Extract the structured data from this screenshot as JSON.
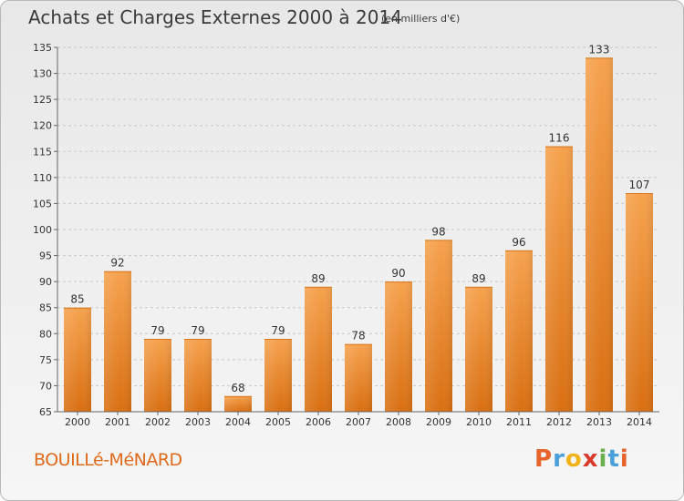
{
  "title": "Achats et Charges Externes 2000 à 2014",
  "subtitle": "(en milliers d'€)",
  "location": "BOUILLé-MéNARD",
  "brand": {
    "letters": [
      "P",
      "r",
      "o",
      "x",
      "i",
      "t",
      "i"
    ],
    "colors": [
      "#e8632a",
      "#4aa0d8",
      "#f2b21a",
      "#d93a2b",
      "#6ab04c",
      "#4aa0d8",
      "#e8632a"
    ]
  },
  "colors": {
    "bar_top": "#f6a24e",
    "bar_bottom": "#d96f12",
    "location_text": "#e06a1c"
  },
  "chart_data": {
    "type": "bar",
    "title": "Achats et Charges Externes 2000 à 2014",
    "subtitle": "(en milliers d'€)",
    "categories": [
      "2000",
      "2001",
      "2002",
      "2003",
      "2004",
      "2005",
      "2006",
      "2007",
      "2008",
      "2009",
      "2010",
      "2011",
      "2012",
      "2013",
      "2014"
    ],
    "values": [
      85,
      92,
      79,
      79,
      68,
      79,
      89,
      78,
      90,
      98,
      89,
      96,
      116,
      133,
      107
    ],
    "xlabel": "",
    "ylabel": "",
    "ylim": [
      65,
      135
    ],
    "yticks": [
      65,
      70,
      75,
      80,
      85,
      90,
      95,
      100,
      105,
      110,
      115,
      120,
      125,
      130,
      135
    ],
    "grid": "horizontal-dashed",
    "legend": "none"
  }
}
